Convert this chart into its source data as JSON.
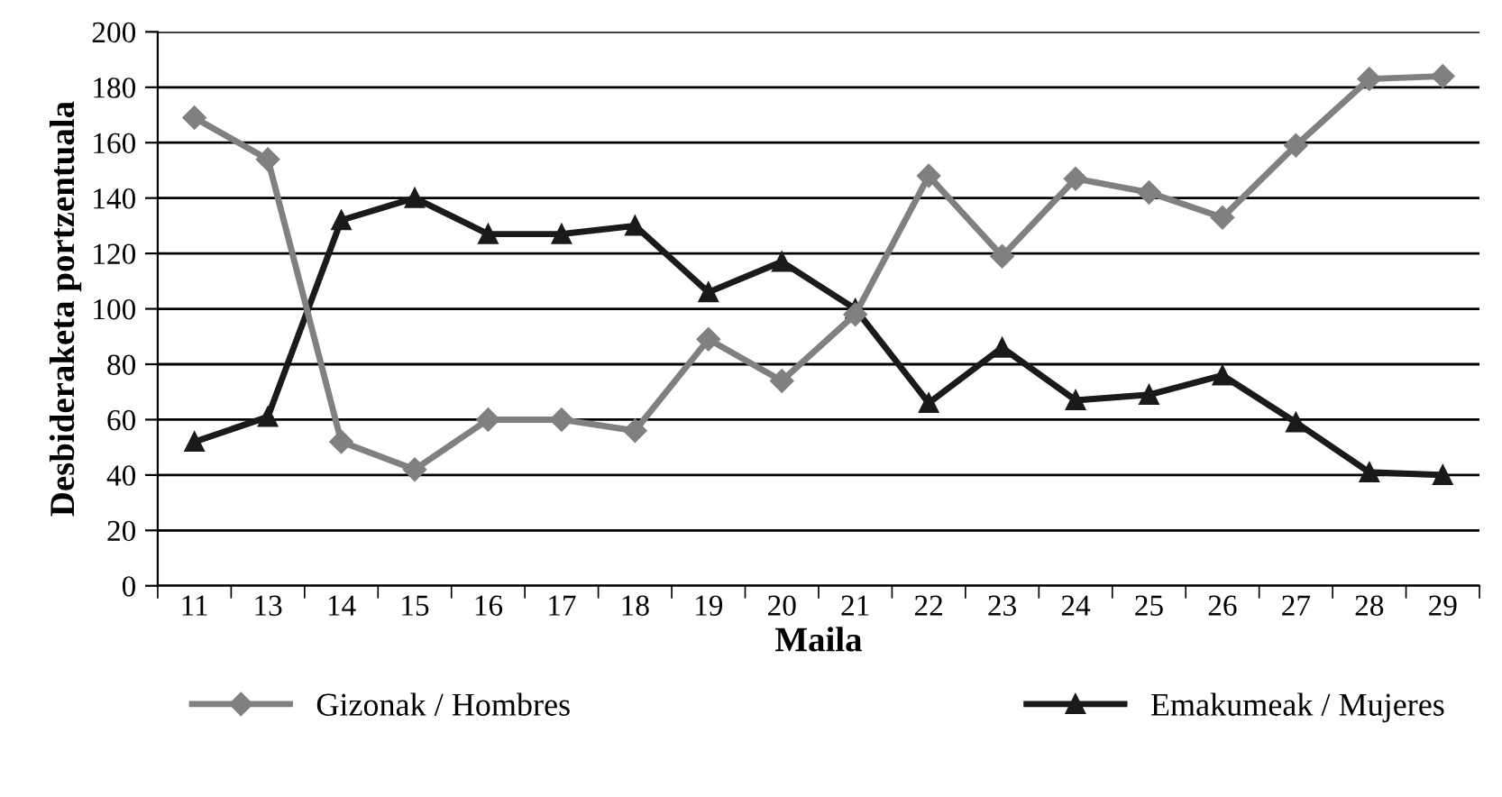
{
  "chart_data": {
    "type": "line",
    "xlabel": "Maila",
    "ylabel": "Desbideraketa portzentuala",
    "categories": [
      "11",
      "13",
      "14",
      "15",
      "16",
      "17",
      "18",
      "19",
      "20",
      "21",
      "22",
      "23",
      "24",
      "25",
      "26",
      "27",
      "28",
      "29"
    ],
    "series": [
      {
        "name": "Gizonak / Hombres",
        "color": "#808080",
        "marker": "diamond",
        "values": [
          169,
          154,
          52,
          42,
          60,
          60,
          56,
          89,
          74,
          98,
          148,
          119,
          147,
          142,
          133,
          159,
          183,
          184
        ]
      },
      {
        "name": "Emakumeak / Mujeres",
        "color": "#1a1a1a",
        "marker": "triangle",
        "values": [
          52,
          61,
          132,
          140,
          127,
          127,
          130,
          106,
          117,
          100,
          66,
          86,
          67,
          69,
          76,
          59,
          41,
          40
        ]
      }
    ],
    "ylim": [
      0,
      200
    ],
    "yticks": [
      0,
      20,
      40,
      60,
      80,
      100,
      120,
      140,
      160,
      180,
      200
    ],
    "grid": "y",
    "legend": "bottom",
    "line_style": "solid"
  }
}
